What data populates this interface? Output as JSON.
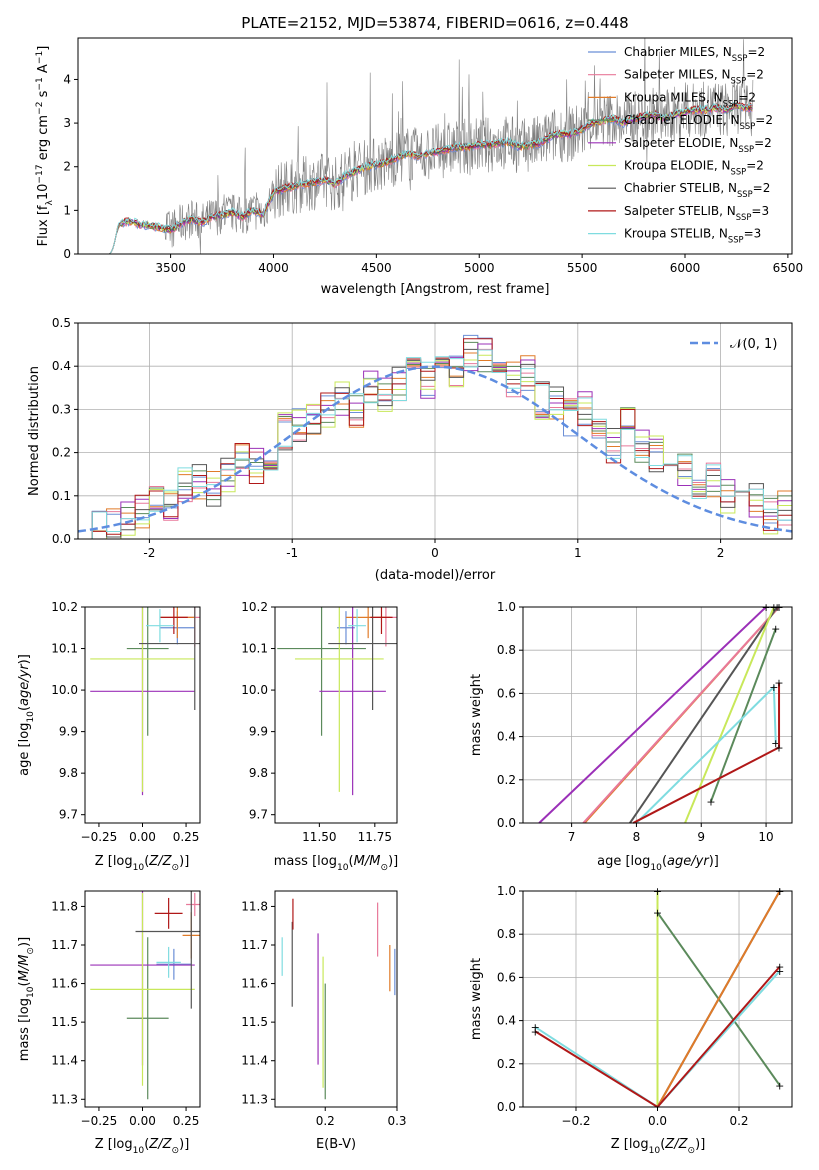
{
  "figure_title": "PLATE=2152, MJD=53874, FIBERID=0616, z=0.448",
  "model_names": [
    "Chabrier MILES",
    "Salpeter MILES",
    "Kroupa MILES",
    "Chabrier ELODIE",
    "Salpeter ELODIE",
    "Kroupa ELODIE",
    "Chabrier STELIB",
    "Salpeter STELIB",
    "Kroupa STELIB"
  ],
  "nssp": [
    2,
    2,
    2,
    2,
    2,
    2,
    2,
    3,
    3
  ],
  "model_colors": [
    "#6b8fd6",
    "#e8799a",
    "#e07b29",
    "#5b8a5b",
    "#9b30b8",
    "#c8e85a",
    "#555555",
    "#b01818",
    "#7fdce0"
  ],
  "chart_data": [
    {
      "type": "line",
      "panel": "spectrum",
      "title": "PLATE=2152, MJD=53874, FIBERID=0616, z=0.448",
      "xlabel": "wavelength [Angstrom, rest frame]",
      "ylabel": "Flux [f_λ 10^-17 erg cm^-2 s^-1 A^-1]",
      "xlim": [
        3050,
        6520
      ],
      "ylim": [
        0,
        4.95
      ],
      "xticks": [
        3500,
        4000,
        4500,
        5000,
        5500,
        6000,
        6500
      ],
      "yticks": [
        0,
        1,
        2,
        3,
        4
      ],
      "grid": false,
      "legend_placement": "right",
      "legend": [
        "Chabrier MILES, N_SSP=2",
        "Salpeter MILES, N_SSP=2",
        "Kroupa MILES, N_SSP=2",
        "Chabrier ELODIE, N_SSP=2",
        "Salpeter ELODIE, N_SSP=2",
        "Kroupa ELODIE, N_SSP=2",
        "Chabrier STELIB, N_SSP=2",
        "Salpeter STELIB, N_SSP=3",
        "Kroupa STELIB, N_SSP=3"
      ],
      "data_range_x": [
        3200,
        6330
      ],
      "model_continuum": {
        "x": [
          3200,
          3250,
          3300,
          3350,
          3400,
          3450,
          3500,
          3550,
          3600,
          3650,
          3700,
          3750,
          3800,
          3850,
          3900,
          3950,
          4000,
          4050,
          4100,
          4150,
          4200,
          4250,
          4300,
          4350,
          4400,
          4450,
          4500,
          4550,
          4600,
          4650,
          4700,
          4750,
          4800,
          4850,
          4900,
          4950,
          5000,
          5050,
          5100,
          5150,
          5200,
          5250,
          5300,
          5350,
          5400,
          5450,
          5500,
          5550,
          5600,
          5650,
          5700,
          5750,
          5800,
          5850,
          5900,
          5950,
          6000,
          6050,
          6100,
          6150,
          6200,
          6250,
          6300,
          6330
        ],
        "y": [
          0.0,
          0.7,
          0.75,
          0.68,
          0.65,
          0.6,
          0.55,
          0.7,
          0.8,
          0.72,
          0.85,
          0.9,
          0.95,
          0.85,
          1.0,
          0.9,
          1.4,
          1.5,
          1.55,
          1.6,
          1.65,
          1.7,
          1.6,
          1.8,
          1.9,
          2.0,
          2.05,
          2.1,
          2.2,
          2.3,
          2.25,
          2.3,
          2.35,
          2.4,
          2.45,
          2.45,
          2.5,
          2.5,
          2.55,
          2.55,
          2.45,
          2.5,
          2.55,
          2.7,
          2.75,
          2.75,
          2.85,
          3.0,
          3.05,
          3.1,
          3.0,
          3.1,
          3.15,
          3.2,
          3.1,
          3.2,
          3.25,
          3.3,
          3.3,
          3.35,
          3.3,
          3.4,
          3.35,
          3.35
        ]
      }
    },
    {
      "type": "line",
      "panel": "residuals",
      "xlabel": "(data-model)/error",
      "ylabel": "Normed distribution",
      "xlim": [
        -2.5,
        2.5
      ],
      "ylim": [
        0,
        0.5
      ],
      "xticks": [
        -2,
        -1,
        0,
        1,
        2
      ],
      "yticks": [
        0.0,
        0.1,
        0.2,
        0.3,
        0.4,
        0.5
      ],
      "grid": true,
      "legend_placement": "top-right",
      "legend": [
        "𝒩(0, 1)"
      ],
      "bin_width": 0.1,
      "reference_curve": "standard normal density",
      "histogram_reference": {
        "x": [
          -2.5,
          -2.4,
          -2.3,
          -2.2,
          -2.1,
          -2.0,
          -1.9,
          -1.8,
          -1.7,
          -1.6,
          -1.5,
          -1.4,
          -1.3,
          -1.2,
          -1.1,
          -1.0,
          -0.9,
          -0.8,
          -0.7,
          -0.6,
          -0.5,
          -0.4,
          -0.3,
          -0.2,
          -0.1,
          0.0,
          0.1,
          0.2,
          0.3,
          0.4,
          0.5,
          0.6,
          0.7,
          0.8,
          0.9,
          1.0,
          1.1,
          1.2,
          1.3,
          1.4,
          1.5,
          1.6,
          1.7,
          1.8,
          1.9,
          2.0,
          2.1,
          2.2,
          2.3,
          2.4
        ],
        "y": [
          0.035,
          0.04,
          0.03,
          0.05,
          0.06,
          0.08,
          0.07,
          0.12,
          0.13,
          0.12,
          0.15,
          0.18,
          0.17,
          0.2,
          0.25,
          0.27,
          0.28,
          0.3,
          0.32,
          0.3,
          0.35,
          0.33,
          0.36,
          0.42,
          0.37,
          0.4,
          0.38,
          0.43,
          0.42,
          0.4,
          0.37,
          0.38,
          0.32,
          0.31,
          0.28,
          0.3,
          0.25,
          0.22,
          0.26,
          0.21,
          0.2,
          0.19,
          0.16,
          0.12,
          0.14,
          0.1,
          0.08,
          0.09,
          0.05,
          0.07
        ]
      }
    },
    {
      "type": "scatter",
      "panel": "age-vs-Z",
      "xlabel": "Z [log10(Z/Z⊙)]",
      "ylabel": "age [log10(age/yr)]",
      "xlim": [
        -0.33,
        0.33
      ],
      "ylim": [
        9.68,
        10.2
      ],
      "xticks": [
        -0.25,
        0.0,
        0.25
      ],
      "xtick_labels": [
        "−0.25",
        "0.00",
        "0.25"
      ],
      "yticks": [
        9.7,
        9.8,
        9.9,
        10.0,
        10.1,
        10.2
      ],
      "grid": false,
      "points": [
        {
          "model": 0,
          "x": 0.2,
          "y": 10.15,
          "xerr": 0.1,
          "yerr": 0.04
        },
        {
          "model": 1,
          "x": 0.3,
          "y": 10.175,
          "xerr": 0.12,
          "yerr": 0.07
        },
        {
          "model": 2,
          "x": 0.2,
          "y": 10.175,
          "xerr": 0.1,
          "yerr": 0.05
        },
        {
          "model": 3,
          "x": 0.03,
          "y": 10.1,
          "xerr": 0.12,
          "yerr": 0.21
        },
        {
          "model": 4,
          "x": 0.0,
          "y": 9.997,
          "xerr": 0.3,
          "yerr": 0.25
        },
        {
          "model": 5,
          "x": 0.0,
          "y": 10.075,
          "xerr": 0.3,
          "yerr": 0.32
        },
        {
          "model": 6,
          "x": 0.3,
          "y": 10.112,
          "xerr": 0.32,
          "yerr": 0.16
        },
        {
          "model": 7,
          "x": 0.18,
          "y": 10.175,
          "xerr": 0.08,
          "yerr": 0.04
        },
        {
          "model": 8,
          "x": 0.1,
          "y": 10.155,
          "xerr": 0.08,
          "yerr": 0.04
        }
      ]
    },
    {
      "type": "scatter",
      "panel": "age-vs-mass",
      "xlabel": "mass [log10(M/M⊙)]",
      "ylabel": "",
      "xlim": [
        11.3,
        11.85
      ],
      "ylim": [
        9.68,
        10.2
      ],
      "xticks": [
        11.5,
        11.75
      ],
      "xtick_labels": [
        "11.50",
        "11.75"
      ],
      "yticks": [
        9.7,
        9.8,
        9.9,
        10.0,
        10.1,
        10.2
      ],
      "grid": false,
      "points": [
        {
          "model": 0,
          "x": 11.62,
          "y": 10.15,
          "xerr": 0.04,
          "yerr": 0.04
        },
        {
          "model": 1,
          "x": 11.8,
          "y": 10.175,
          "xerr": 0.05,
          "yerr": 0.07
        },
        {
          "model": 2,
          "x": 11.72,
          "y": 10.175,
          "xerr": 0.1,
          "yerr": 0.05
        },
        {
          "model": 3,
          "x": 11.51,
          "y": 10.1,
          "xerr": 0.2,
          "yerr": 0.21
        },
        {
          "model": 4,
          "x": 11.65,
          "y": 9.997,
          "xerr": 0.15,
          "yerr": 0.25
        },
        {
          "model": 5,
          "x": 11.59,
          "y": 10.075,
          "xerr": 0.2,
          "yerr": 0.32
        },
        {
          "model": 6,
          "x": 11.74,
          "y": 10.112,
          "xerr": 0.2,
          "yerr": 0.16
        },
        {
          "model": 7,
          "x": 11.78,
          "y": 10.175,
          "xerr": 0.05,
          "yerr": 0.04
        },
        {
          "model": 8,
          "x": 11.67,
          "y": 10.155,
          "xerr": 0.04,
          "yerr": 0.04
        }
      ]
    },
    {
      "type": "line",
      "panel": "weight-vs-age",
      "xlabel": "age [log10(age/yr)]",
      "ylabel": "mass weight",
      "xlim": [
        6.25,
        10.4
      ],
      "ylim": [
        0,
        1
      ],
      "xticks": [
        6,
        7,
        8,
        9,
        10
      ],
      "yticks": [
        0.0,
        0.2,
        0.4,
        0.6,
        0.8,
        1.0
      ],
      "grid": true,
      "series": [
        {
          "model": 4,
          "x": [
            6.5,
            10.0
          ],
          "y": [
            0.0,
            1.0
          ]
        },
        {
          "model": 2,
          "x": [
            7.2,
            10.2
          ],
          "y": [
            0.0,
            1.0
          ]
        },
        {
          "model": 1,
          "x": [
            7.18,
            10.2
          ],
          "y": [
            0.0,
            1.0
          ]
        },
        {
          "model": 6,
          "x": [
            7.9,
            10.17
          ],
          "y": [
            0.0,
            1.0
          ]
        },
        {
          "model": 5,
          "x": [
            8.75,
            10.12
          ],
          "y": [
            0.0,
            1.0
          ]
        },
        {
          "model": 3,
          "x": [
            9.15,
            10.15
          ],
          "y": [
            0.1,
            0.9
          ]
        },
        {
          "model": 8,
          "x": [
            8.0,
            10.12,
            10.15
          ],
          "y": [
            0.0,
            0.63,
            0.37
          ]
        },
        {
          "model": 7,
          "x": [
            7.95,
            10.2,
            10.2
          ],
          "y": [
            0.0,
            0.35,
            0.65
          ]
        }
      ]
    },
    {
      "type": "scatter",
      "panel": "mass-vs-Z",
      "xlabel": "Z [log10(Z/Z⊙)]",
      "ylabel": "mass [log10(M/M⊙)]",
      "xlim": [
        -0.33,
        0.33
      ],
      "ylim": [
        11.28,
        11.84
      ],
      "xticks": [
        -0.25,
        0.0,
        0.25
      ],
      "xtick_labels": [
        "−0.25",
        "0.00",
        "0.25"
      ],
      "yticks": [
        11.3,
        11.4,
        11.5,
        11.6,
        11.7,
        11.8
      ],
      "grid": false,
      "points": [
        {
          "model": 0,
          "x": 0.18,
          "y": 11.65,
          "xerr": 0.1,
          "yerr": 0.04
        },
        {
          "model": 1,
          "x": 0.3,
          "y": 11.805,
          "xerr": 0.05,
          "yerr": 0.03
        },
        {
          "model": 2,
          "x": 0.28,
          "y": 11.725,
          "xerr": 0.05,
          "yerr": 0.06
        },
        {
          "model": 3,
          "x": 0.03,
          "y": 11.51,
          "xerr": 0.12,
          "yerr": 0.21
        },
        {
          "model": 4,
          "x": 0.0,
          "y": 11.648,
          "xerr": 0.3,
          "yerr": 0.26
        },
        {
          "model": 5,
          "x": 0.0,
          "y": 11.585,
          "xerr": 0.3,
          "yerr": 0.25
        },
        {
          "model": 6,
          "x": 0.28,
          "y": 11.735,
          "xerr": 0.32,
          "yerr": 0.2
        },
        {
          "model": 7,
          "x": 0.15,
          "y": 11.782,
          "xerr": 0.08,
          "yerr": 0.04
        },
        {
          "model": 8,
          "x": 0.15,
          "y": 11.655,
          "xerr": 0.07,
          "yerr": 0.04
        }
      ]
    },
    {
      "type": "scatter",
      "panel": "mass-vs-EBV",
      "xlabel": "E(B-V)",
      "ylabel": "",
      "xlim": [
        0.13,
        0.3
      ],
      "ylim": [
        11.28,
        11.84
      ],
      "xticks": [
        0.2,
        0.3
      ],
      "xtick_labels": [
        "0.2",
        "0.3"
      ],
      "yticks": [
        11.3,
        11.4,
        11.5,
        11.6,
        11.7,
        11.8
      ],
      "grid": false,
      "points": [
        {
          "model": 0,
          "x": 0.297,
          "y": 11.63,
          "yerr": 0.06
        },
        {
          "model": 1,
          "x": 0.273,
          "y": 11.74,
          "yerr": 0.07
        },
        {
          "model": 2,
          "x": 0.29,
          "y": 11.64,
          "yerr": 0.06
        },
        {
          "model": 3,
          "x": 0.2,
          "y": 11.45,
          "yerr": 0.15
        },
        {
          "model": 4,
          "x": 0.19,
          "y": 11.56,
          "yerr": 0.17
        },
        {
          "model": 5,
          "x": 0.197,
          "y": 11.5,
          "yerr": 0.17
        },
        {
          "model": 6,
          "x": 0.154,
          "y": 11.65,
          "yerr": 0.11
        },
        {
          "model": 7,
          "x": 0.155,
          "y": 11.78,
          "yerr": 0.04
        },
        {
          "model": 8,
          "x": 0.14,
          "y": 11.67,
          "yerr": 0.05
        }
      ]
    },
    {
      "type": "line",
      "panel": "weight-vs-Z",
      "xlabel": "Z [log10(Z/Z⊙)]",
      "ylabel": "mass weight",
      "xlim": [
        -0.33,
        0.33
      ],
      "ylim": [
        0,
        1
      ],
      "xticks": [
        -0.2,
        0.0,
        0.2
      ],
      "xtick_labels": [
        "−0.2",
        "0.0",
        "0.2"
      ],
      "yticks": [
        0.0,
        0.2,
        0.4,
        0.6,
        0.8,
        1.0
      ],
      "grid": true,
      "series": [
        {
          "model": 5,
          "x": [
            0.0,
            0.0
          ],
          "y": [
            0.0,
            1.0
          ]
        },
        {
          "model": 3,
          "x": [
            0.0,
            0.3
          ],
          "y": [
            0.9,
            0.1
          ]
        },
        {
          "model": 6,
          "x": [
            0.0,
            0.3
          ],
          "y": [
            0.0,
            1.0
          ]
        },
        {
          "model": 2,
          "x": [
            0.0,
            0.3
          ],
          "y": [
            0.0,
            1.0
          ]
        },
        {
          "model": 8,
          "x": [
            -0.3,
            0.0,
            0.3
          ],
          "y": [
            0.37,
            0.0,
            0.63
          ]
        },
        {
          "model": 7,
          "x": [
            -0.3,
            0.0,
            0.3
          ],
          "y": [
            0.35,
            0.0,
            0.65
          ]
        }
      ]
    }
  ]
}
